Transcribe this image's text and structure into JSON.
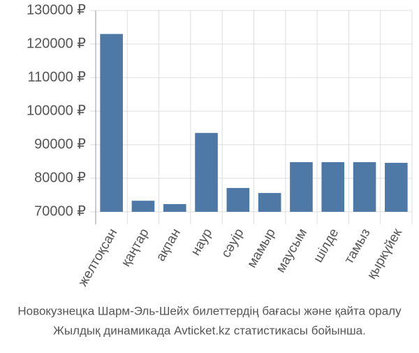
{
  "chart_data": {
    "type": "bar",
    "title": "Новокузнецка Шарм-Эль-Шейх билеттердің бағасы және қайта оралу",
    "subtitle": "Жылдық динамикада Avticket.kz статистикасы бойынша.",
    "categories": [
      "желтоқсан",
      "қаңтар",
      "ақпан",
      "наур",
      "сәуір",
      "мамыр",
      "маусым",
      "шілде",
      "тамыз",
      "қыркүйек"
    ],
    "values": [
      123000,
      73300,
      72300,
      93500,
      77100,
      75600,
      84800,
      84800,
      84800,
      84600
    ],
    "color": "#4e79a7",
    "ylim": [
      70000,
      130000
    ],
    "yticks": [
      {
        "value": 70000,
        "label": "70000 ₽"
      },
      {
        "value": 80000,
        "label": "80000 ₽"
      },
      {
        "value": 90000,
        "label": "90000 ₽"
      },
      {
        "value": 100000,
        "label": "100000 ₽"
      },
      {
        "value": 110000,
        "label": "110000 ₽"
      },
      {
        "value": 120000,
        "label": "120000 ₽"
      },
      {
        "value": 130000,
        "label": "130000 ₽"
      }
    ],
    "grid": true
  }
}
